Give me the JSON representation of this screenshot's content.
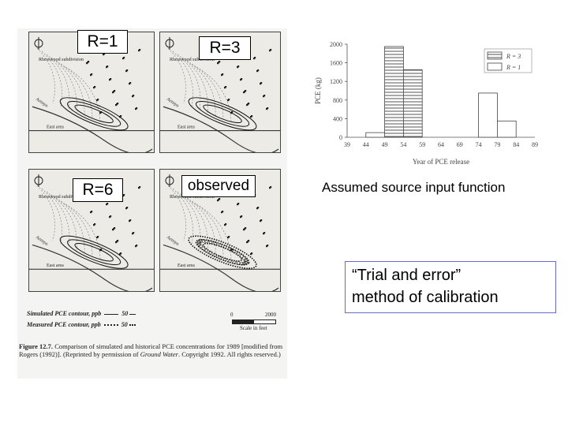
{
  "labels": {
    "r1": "R=1",
    "r3": "R=3",
    "r6": "R=6",
    "observed": "observed"
  },
  "map_text": {
    "subdivision": "Rhesswood subdivision",
    "east_area": "East area",
    "arroyo": "Arroyo"
  },
  "legend": {
    "simulated": "Simulated PCE contour, ppb",
    "simulated_value": "50",
    "measured": "Measured PCE contour, ppb",
    "measured_value": "50",
    "scale_zero": "0",
    "scale_max": "2000",
    "scale_unit": "Scale in feet"
  },
  "caption": {
    "figure_number": "Figure 12.7.",
    "text_part1": "Comparison of simulated and historical PCE concentrations for 1989 [modified from Rogers (1992)]. (Reprinted by permission of",
    "journal": "Ground Water",
    "text_part2": ". Copyright 1992. All rights reserved.)"
  },
  "assumed_label": "Assumed source input function",
  "trial_box": {
    "line1": "“Trial and error”",
    "line2": "method of calibration"
  },
  "chart_data": {
    "type": "bar",
    "ylabel": "PCE (kg)",
    "xlabel": "Year of PCE release",
    "ylim": [
      0,
      2000
    ],
    "yticks": [
      0,
      400,
      800,
      1200,
      1600,
      2000
    ],
    "xticks": [
      "39",
      "44",
      "49",
      "54",
      "59",
      "64",
      "69",
      "74",
      "79",
      "84",
      "89"
    ],
    "xlim": [
      39,
      89
    ],
    "series": [
      {
        "name": "R = 3",
        "pattern": "hatched",
        "bars": [
          {
            "start": 49,
            "end": 54,
            "value": 1950
          },
          {
            "start": 54,
            "end": 59,
            "value": 1450
          }
        ]
      },
      {
        "name": "R = 1",
        "pattern": "open",
        "bars": [
          {
            "start": 44,
            "end": 49,
            "value": 100
          },
          {
            "start": 74,
            "end": 79,
            "value": 950
          },
          {
            "start": 79,
            "end": 84,
            "value": 350
          }
        ]
      }
    ],
    "legend_position": "top-right",
    "grid": false
  }
}
